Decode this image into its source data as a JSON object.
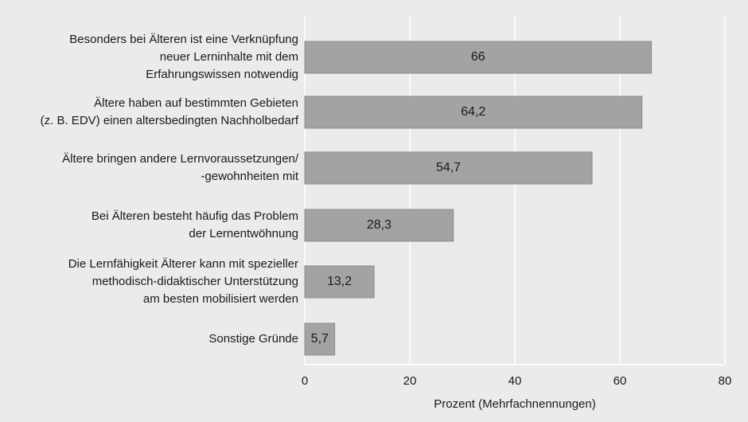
{
  "chart_data": {
    "type": "bar",
    "orientation": "horizontal",
    "categories": [
      "Besonders bei Älteren ist eine Verknüpfung\nneuer Lerninhalte mit dem\nErfahrungswissen notwendig",
      "Ältere haben auf bestimmten Gebieten\n(z. B. EDV) einen altersbedingten Nachholbedarf",
      "Ältere bringen andere Lernvoraussetzungen/\n-gewohnheiten mit",
      "Bei Älteren besteht häufig das Problem\nder Lernentwöhnung",
      "Die Lernfähigkeit Älterer kann mit spezieller\nmethodisch-didaktischer Unterstützung\nam besten mobilisiert werden",
      "Sonstige Gründe"
    ],
    "values": [
      66,
      64.2,
      54.7,
      28.3,
      13.2,
      5.7
    ],
    "value_labels": [
      "66",
      "64,2",
      "54,7",
      "28,3",
      "13,2",
      "5,7"
    ],
    "color": "#a3a3a3",
    "xlabel": "Prozent (Mehrfachnennungen)",
    "xlim": [
      0,
      80
    ],
    "xticks": [
      0,
      20,
      40,
      60,
      80
    ],
    "grid": true
  }
}
